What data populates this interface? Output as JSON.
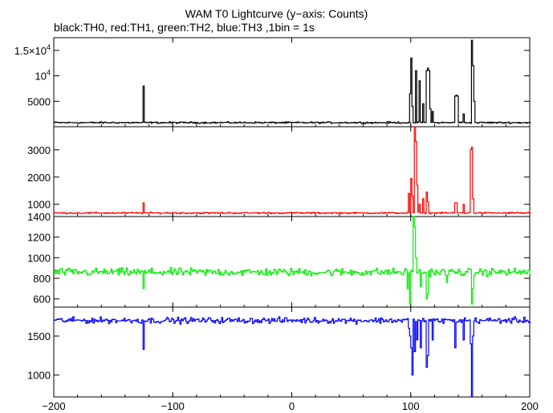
{
  "title": "WAM T0 Lightcurve (y−axis: Counts)",
  "subtitle": "black:TH0, red:TH1, green:TH2, blue:TH3 ,1bin = 1s",
  "chart_data": {
    "type": "line",
    "title": "WAM T0 Lightcurve (y−axis: Counts)",
    "subtitle": "black:TH0, red:TH1, green:TH2, blue:TH3 ,1bin = 1s",
    "x_range": [
      -200,
      200
    ],
    "x_ticks": [
      -200,
      -100,
      0,
      100,
      200
    ],
    "x_tick_labels": [
      "−200",
      "−100",
      "0",
      "100",
      "200"
    ],
    "grid": false,
    "panels": [
      {
        "series": "TH0",
        "color": "#000000",
        "ylim": [
          0,
          17500
        ],
        "y_ticks": [
          5000,
          10000,
          15000
        ],
        "y_tick_labels": [
          {
            "base": "5000",
            "exp": ""
          },
          {
            "base": "10",
            "exp": "4"
          },
          {
            "base": "1.5×10",
            "exp": "4"
          }
        ],
        "baseline": 800,
        "noise": 130,
        "features": [
          {
            "x": -125,
            "y": 8000
          },
          {
            "x": 99,
            "y": 6500
          },
          {
            "x": 100,
            "y": 13500
          },
          {
            "x": 101,
            "y": 4000
          },
          {
            "x": 104,
            "y": 11000
          },
          {
            "x": 107,
            "y": 9000
          },
          {
            "x": 110,
            "y": 4500
          },
          {
            "x": 113,
            "y": 11000
          },
          {
            "x": 114,
            "y": 11500
          },
          {
            "x": 115,
            "y": 11000
          },
          {
            "x": 116,
            "y": 3500
          },
          {
            "x": 118,
            "y": 3000
          },
          {
            "x": 137,
            "y": 6000
          },
          {
            "x": 138,
            "y": 6200
          },
          {
            "x": 139,
            "y": 6000
          },
          {
            "x": 144,
            "y": 2500
          },
          {
            "x": 151,
            "y": 17000
          },
          {
            "x": 152,
            "y": 12000
          },
          {
            "x": 153,
            "y": 5000
          }
        ]
      },
      {
        "series": "TH1",
        "color": "#ff0000",
        "ylim": [
          550,
          3850
        ],
        "y_ticks": [
          1000,
          2000,
          3000
        ],
        "y_tick_labels": [
          {
            "base": "1000",
            "exp": ""
          },
          {
            "base": "2000",
            "exp": ""
          },
          {
            "base": "3000",
            "exp": ""
          }
        ],
        "baseline": 680,
        "noise": 22,
        "features": [
          {
            "x": -125,
            "y": 1050
          },
          {
            "x": 98,
            "y": 1400
          },
          {
            "x": 100,
            "y": 1950
          },
          {
            "x": 101,
            "y": 1300
          },
          {
            "x": 103,
            "y": 3850
          },
          {
            "x": 104,
            "y": 3300
          },
          {
            "x": 105,
            "y": 1700
          },
          {
            "x": 107,
            "y": 1000
          },
          {
            "x": 110,
            "y": 1200
          },
          {
            "x": 113,
            "y": 1450
          },
          {
            "x": 114,
            "y": 1100
          },
          {
            "x": 137,
            "y": 1050
          },
          {
            "x": 138,
            "y": 1050
          },
          {
            "x": 144,
            "y": 1000
          },
          {
            "x": 150,
            "y": 3000
          },
          {
            "x": 151,
            "y": 3100
          },
          {
            "x": 152,
            "y": 1200
          }
        ]
      },
      {
        "series": "TH2",
        "color": "#00ee00",
        "ylim": [
          520,
          1400
        ],
        "y_ticks": [
          600,
          800,
          1000,
          1200,
          1400
        ],
        "y_tick_labels": [
          {
            "base": "600",
            "exp": ""
          },
          {
            "base": "800",
            "exp": ""
          },
          {
            "base": "1000",
            "exp": ""
          },
          {
            "base": "1200",
            "exp": ""
          },
          {
            "base": "1400",
            "exp": ""
          }
        ],
        "baseline": 860,
        "noise": 32,
        "features": [
          {
            "x": -125,
            "y": 700
          },
          {
            "x": 97,
            "y": 700
          },
          {
            "x": 99,
            "y": 550
          },
          {
            "x": 102,
            "y": 1400
          },
          {
            "x": 103,
            "y": 1300
          },
          {
            "x": 104,
            "y": 1000
          },
          {
            "x": 108,
            "y": 720
          },
          {
            "x": 113,
            "y": 600
          },
          {
            "x": 114,
            "y": 650
          },
          {
            "x": 130,
            "y": 760
          },
          {
            "x": 151,
            "y": 550
          },
          {
            "x": 152,
            "y": 700
          }
        ]
      },
      {
        "series": "TH3",
        "color": "#0000ff",
        "ylim": [
          720,
          1870
        ],
        "y_ticks": [
          1000,
          1500
        ],
        "y_tick_labels": [
          {
            "base": "1000",
            "exp": ""
          },
          {
            "base": "1500",
            "exp": ""
          }
        ],
        "baseline": 1700,
        "noise": 32,
        "features": [
          {
            "x": -125,
            "y": 1330
          },
          {
            "x": 98,
            "y": 1600
          },
          {
            "x": 99,
            "y": 1500
          },
          {
            "x": 100,
            "y": 1350
          },
          {
            "x": 101,
            "y": 1000
          },
          {
            "x": 103,
            "y": 1300
          },
          {
            "x": 105,
            "y": 1450
          },
          {
            "x": 108,
            "y": 1350
          },
          {
            "x": 113,
            "y": 1100
          },
          {
            "x": 114,
            "y": 1250
          },
          {
            "x": 118,
            "y": 1450
          },
          {
            "x": 137,
            "y": 1350
          },
          {
            "x": 144,
            "y": 1450
          },
          {
            "x": 150,
            "y": 1400
          },
          {
            "x": 151,
            "y": 720
          },
          {
            "x": 152,
            "y": 1500
          }
        ]
      }
    ]
  }
}
